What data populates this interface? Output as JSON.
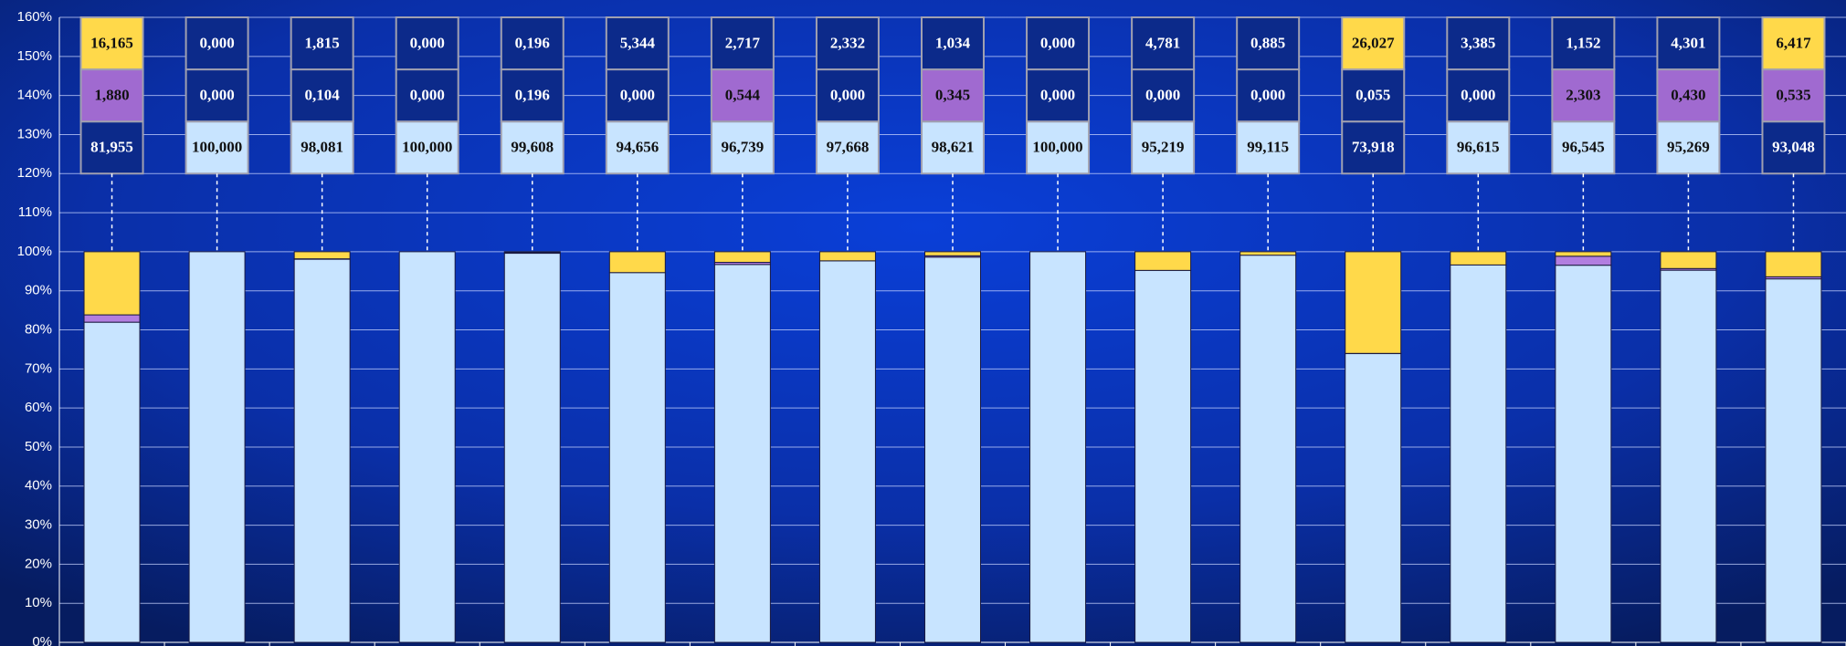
{
  "chart_data": {
    "type": "stacked_bar",
    "categories": [
      null,
      null,
      null,
      null,
      null,
      null,
      null,
      null,
      null,
      null,
      null,
      null,
      null,
      null,
      null,
      null,
      null
    ],
    "ylim": [
      0,
      160
    ],
    "yticks": [
      {
        "value": 0,
        "label": "0%"
      },
      {
        "value": 10,
        "label": "10%"
      },
      {
        "value": 20,
        "label": "20%"
      },
      {
        "value": 30,
        "label": "30%"
      },
      {
        "value": 40,
        "label": "40%"
      },
      {
        "value": 50,
        "label": "50%"
      },
      {
        "value": 60,
        "label": "60%"
      },
      {
        "value": 70,
        "label": "70%"
      },
      {
        "value": 80,
        "label": "80%"
      },
      {
        "value": 90,
        "label": "90%"
      },
      {
        "value": 100,
        "label": "100%"
      },
      {
        "value": 110,
        "label": "110%"
      },
      {
        "value": 120,
        "label": "120%"
      },
      {
        "value": 130,
        "label": "130%"
      },
      {
        "value": 140,
        "label": "140%"
      },
      {
        "value": 150,
        "label": "150%"
      },
      {
        "value": 160,
        "label": "160%"
      }
    ],
    "grid": true,
    "series": [
      {
        "color": "#c8e4ff",
        "values": [
          81.955,
          100,
          98.081,
          100,
          99.608,
          94.656,
          96.739,
          97.668,
          98.621,
          100,
          95.219,
          99.115,
          73.918,
          96.615,
          96.545,
          95.269,
          93.048
        ],
        "value_labels": [
          "81,955",
          "100,000",
          "98,081",
          "100,000",
          "99,608",
          "94,656",
          "96,739",
          "97,668",
          "98,621",
          "100,000",
          "95,219",
          "99,115",
          "73,918",
          "96,615",
          "96,545",
          "95,269",
          "93,048"
        ],
        "label_colors": [
          "#0c2a8a",
          "#c8e4ff",
          "#c8e4ff",
          "#c8e4ff",
          "#c8e4ff",
          "#c8e4ff",
          "#c8e4ff",
          "#c8e4ff",
          "#c8e4ff",
          "#c8e4ff",
          "#c8e4ff",
          "#c8e4ff",
          "#0c2a8a",
          "#c8e4ff",
          "#c8e4ff",
          "#c8e4ff",
          "#0c2a8a"
        ]
      },
      {
        "color": "#b27ee0",
        "values": [
          1.88,
          0,
          0.104,
          0,
          0.196,
          0,
          0.544,
          0,
          0.345,
          0,
          0,
          0,
          0.055,
          0,
          2.303,
          0.43,
          0.535
        ],
        "value_labels": [
          "1,880",
          "0,000",
          "0,104",
          "0,000",
          "0,196",
          "0,000",
          "0,544",
          "0,000",
          "0,345",
          "0,000",
          "0,000",
          "0,000",
          "0,055",
          "0,000",
          "2,303",
          "0,430",
          "0,535"
        ],
        "label_colors": [
          "#a06ad0",
          "#0c2a8a",
          "#0c2a8a",
          "#0c2a8a",
          "#0c2a8a",
          "#0c2a8a",
          "#a06ad0",
          "#0c2a8a",
          "#a06ad0",
          "#0c2a8a",
          "#0c2a8a",
          "#0c2a8a",
          "#0c2a8a",
          "#0c2a8a",
          "#a06ad0",
          "#a06ad0",
          "#a06ad0"
        ]
      },
      {
        "color": "#ffd94a",
        "values": [
          16.165,
          0,
          1.815,
          0,
          0.196,
          5.344,
          2.717,
          2.332,
          1.034,
          0,
          4.781,
          0.885,
          26.027,
          3.385,
          1.152,
          4.301,
          6.417
        ],
        "value_labels": [
          "16,165",
          "0,000",
          "1,815",
          "0,000",
          "0,196",
          "5,344",
          "2,717",
          "2,332",
          "1,034",
          "0,000",
          "4,781",
          "0,885",
          "26,027",
          "3,385",
          "1,152",
          "4,301",
          "6,417"
        ],
        "label_colors": [
          "#ffd94a",
          "#0c2a8a",
          "#0c2a8a",
          "#0c2a8a",
          "#0c2a8a",
          "#0c2a8a",
          "#0c2a8a",
          "#0c2a8a",
          "#0c2a8a",
          "#0c2a8a",
          "#0c2a8a",
          "#0c2a8a",
          "#ffd94a",
          "#0c2a8a",
          "#0c2a8a",
          "#0c2a8a",
          "#ffd94a"
        ]
      }
    ]
  }
}
